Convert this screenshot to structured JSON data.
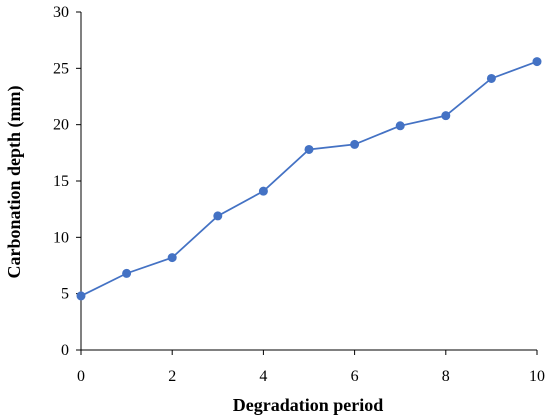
{
  "chart_data": {
    "type": "line",
    "title": "",
    "xlabel": "Degradation period",
    "ylabel": "Carbonation depth (mm)",
    "xlim": [
      0,
      10
    ],
    "ylim": [
      0,
      30
    ],
    "xticks": [
      0,
      2,
      4,
      6,
      8,
      10
    ],
    "yticks": [
      0,
      5,
      10,
      15,
      20,
      25,
      30
    ],
    "grid": false,
    "legend": "none",
    "series": [
      {
        "color": "#4472C4",
        "marker": "circle",
        "x": [
          0,
          1,
          2,
          3,
          4,
          5,
          6,
          7,
          8,
          9,
          10
        ],
        "y": [
          4.8,
          6.8,
          8.2,
          11.9,
          14.1,
          17.8,
          18.25,
          19.9,
          20.8,
          24.1,
          25.6
        ]
      }
    ]
  }
}
